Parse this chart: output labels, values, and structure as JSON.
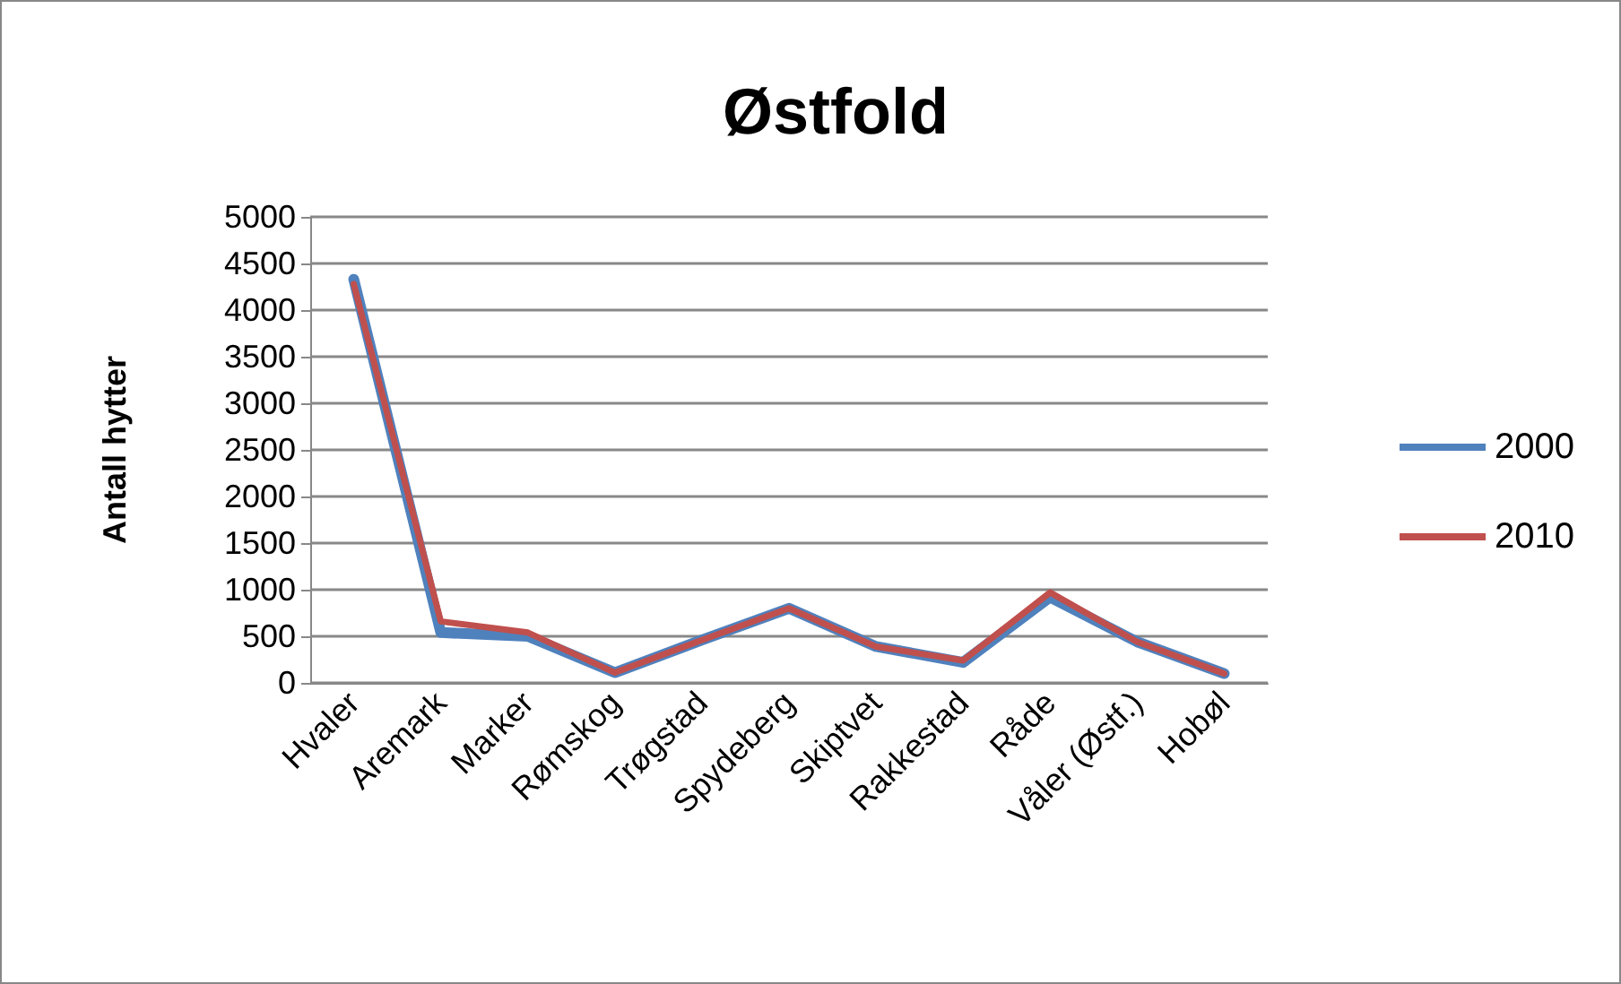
{
  "chart_data": {
    "type": "line",
    "title": "Østfold",
    "ylabel": "Antall hytter",
    "categories": [
      "Hvaler",
      "Aremark",
      "Marker",
      "Rømskog",
      "Trøgstad",
      "Spydeberg",
      "Skiptvet",
      "Rakkestad",
      "Råde",
      "Våler (Østf.)",
      "Hobøl"
    ],
    "series": [
      {
        "name": "2000",
        "color": "#4f81bd",
        "values": [
          4330,
          540,
          500,
          110,
          460,
          800,
          390,
          220,
          920,
          440,
          100
        ]
      },
      {
        "name": "2010",
        "color": "#c0504d",
        "values": [
          4280,
          660,
          540,
          110,
          460,
          800,
          390,
          240,
          970,
          440,
          100
        ]
      }
    ],
    "ylim": [
      0,
      5000
    ],
    "yticks": [
      0,
      500,
      1000,
      1500,
      2000,
      2500,
      3000,
      3500,
      4000,
      4500,
      5000
    ],
    "grid": "y",
    "legend": "right",
    "marker": "none",
    "line_style": "solid"
  }
}
